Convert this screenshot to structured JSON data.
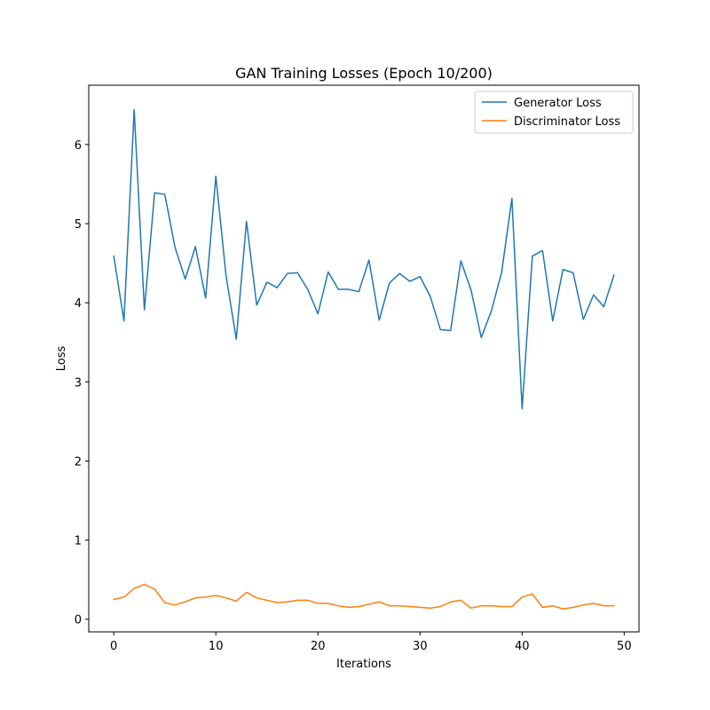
{
  "chart_data": {
    "type": "line",
    "title": "GAN Training Losses (Epoch 10/200)",
    "xlabel": "Iterations",
    "ylabel": "Loss",
    "xlim": [
      -2.45,
      51.45
    ],
    "ylim": [
      -0.16,
      6.75
    ],
    "xticks": [
      0,
      10,
      20,
      30,
      40,
      50
    ],
    "yticks": [
      0,
      1,
      2,
      3,
      4,
      5,
      6
    ],
    "grid": false,
    "legend_position": "top-right",
    "x": [
      0,
      1,
      2,
      3,
      4,
      5,
      6,
      7,
      8,
      9,
      10,
      11,
      12,
      13,
      14,
      15,
      16,
      17,
      18,
      19,
      20,
      21,
      22,
      23,
      24,
      25,
      26,
      27,
      28,
      29,
      30,
      31,
      32,
      33,
      34,
      35,
      36,
      37,
      38,
      39,
      40,
      41,
      42,
      43,
      44,
      45,
      46,
      47,
      48,
      49
    ],
    "series": [
      {
        "name": "Generator Loss",
        "color": "#1f77b4",
        "values": [
          4.59,
          3.77,
          6.44,
          3.91,
          5.39,
          5.37,
          4.7,
          4.3,
          4.71,
          4.06,
          5.6,
          4.34,
          3.54,
          5.03,
          3.97,
          4.26,
          4.19,
          4.37,
          4.38,
          4.17,
          3.86,
          4.39,
          4.17,
          4.17,
          4.14,
          4.54,
          3.78,
          4.25,
          4.37,
          4.27,
          4.33,
          4.08,
          3.66,
          3.65,
          4.53,
          4.16,
          3.56,
          3.9,
          4.39,
          5.32,
          2.66,
          4.59,
          4.66,
          3.77,
          4.42,
          4.38,
          3.79,
          4.1,
          3.95,
          4.35
        ]
      },
      {
        "name": "Discriminator Loss",
        "color": "#ff7f0e",
        "values": [
          0.25,
          0.28,
          0.39,
          0.44,
          0.38,
          0.21,
          0.18,
          0.22,
          0.27,
          0.28,
          0.3,
          0.27,
          0.23,
          0.34,
          0.27,
          0.24,
          0.21,
          0.22,
          0.24,
          0.24,
          0.2,
          0.2,
          0.17,
          0.15,
          0.16,
          0.19,
          0.22,
          0.17,
          0.17,
          0.16,
          0.15,
          0.14,
          0.16,
          0.22,
          0.24,
          0.14,
          0.17,
          0.17,
          0.16,
          0.16,
          0.28,
          0.32,
          0.15,
          0.17,
          0.13,
          0.15,
          0.18,
          0.2,
          0.17,
          0.17
        ]
      }
    ]
  }
}
